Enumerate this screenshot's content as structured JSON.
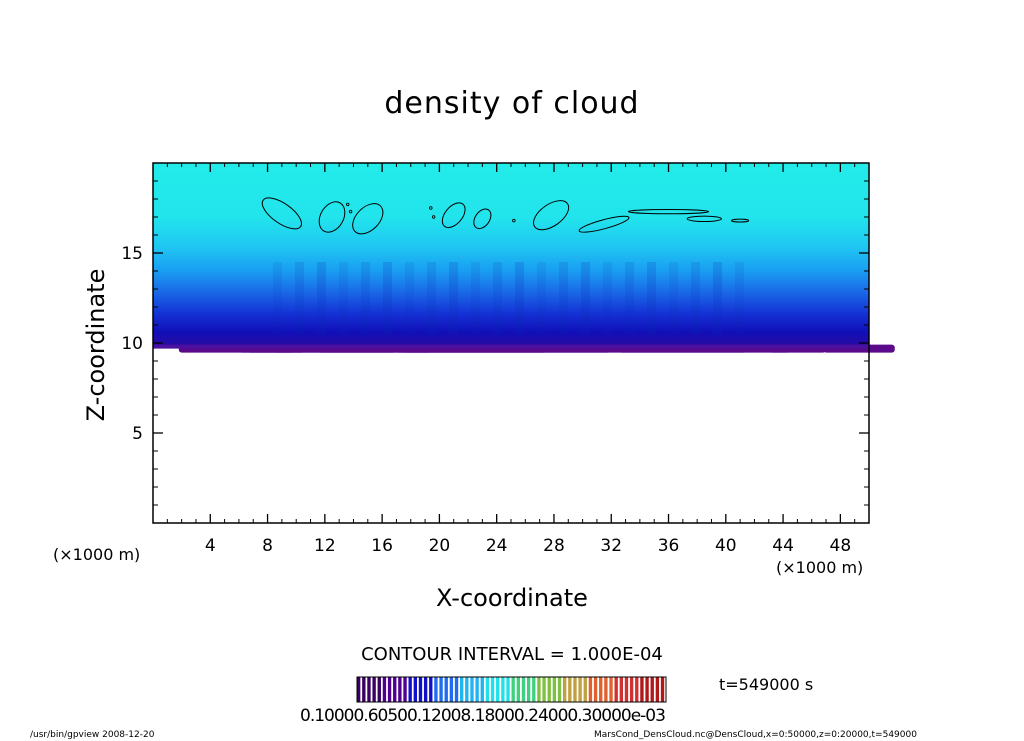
{
  "chart_data": {
    "type": "heatmap",
    "title": "density of cloud",
    "xlabel": "X-coordinate",
    "ylabel": "Z-coordinate",
    "x_unit_left": "(×1000 m)",
    "x_unit_right": "(×1000 m)",
    "xlim": [
      0,
      50
    ],
    "ylim": [
      0,
      20
    ],
    "x_ticks": [
      4,
      8,
      12,
      16,
      20,
      24,
      28,
      32,
      36,
      40,
      44,
      48
    ],
    "y_ticks": [
      5,
      10,
      15
    ],
    "cloud_base_z": 9.8,
    "cloud_top_z": 20,
    "contour_interval": "CONTOUR INTERVAL = 1.000E-04",
    "time": "t=549000 s",
    "colorbar_labels": "0.10000.60500.12008.18000.24000.30000e-03",
    "colormap": [
      "#380060",
      "#500090",
      "#1010c8",
      "#1e6cf0",
      "#20b4f0",
      "#20e0e8",
      "#40d080",
      "#80c040",
      "#c0a040",
      "#e06030",
      "#d03030",
      "#b01818"
    ]
  },
  "footer": {
    "left": "/usr/bin/gpview   2008-12-20",
    "right": "MarsCond_DensCloud.nc@DensCloud,x=0:50000,z=0:20000,t=549000"
  }
}
